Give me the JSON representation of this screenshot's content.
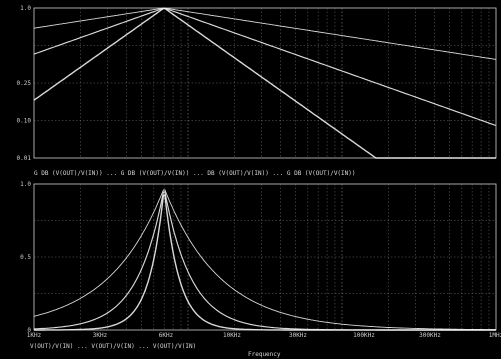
{
  "theme": {
    "background": "#000000",
    "grid": "#8a8a8a",
    "axis": "#e0e0e0",
    "trace": "#f0f0f0"
  },
  "top_panel": {
    "y_ticks": [
      "1.0",
      "",
      "0.25",
      "0.10",
      "0.01"
    ],
    "legend": "G DB (V(OUT)/V(IN)) ... G DB (V(OUT)/V(IN)) ... DB (V(OUT)/V(IN)) ... G DB (V(OUT)/V(IN))"
  },
  "bottom_panel": {
    "y_ticks": [
      "1.0",
      "0.5",
      "0"
    ],
    "x_ticks": [
      "1KHz",
      "3KHz",
      "6KHz",
      "10KHz",
      "30KHz",
      "100KHz",
      "300KHz",
      "1MHz"
    ],
    "legend": "V(OUT)/V(IN) ... V(OUT)/V(IN) ... V(OUT)/V(IN)",
    "x_title": "Frequency"
  },
  "chart_data": [
    {
      "type": "line",
      "title": "",
      "xlabel": "",
      "ylabel": "",
      "x_scale": "log",
      "grid": true,
      "peak_frequency": 7000,
      "series": [
        {
          "name": "",
          "rolloff_exponent": 0.35
        },
        {
          "name": "",
          "rolloff_exponent": 0.8
        },
        {
          "name": "",
          "rolloff_exponent": 1.6
        }
      ]
    },
    {
      "type": "line",
      "title": "",
      "xlabel": "Frequency",
      "ylabel": "",
      "x_scale": "log",
      "grid": true,
      "peak_frequency": 7000,
      "ylim": [
        0,
        1
      ],
      "series": [
        {
          "name": "",
          "rolloff_exponent": 1.2
        },
        {
          "name": "",
          "rolloff_exponent": 2.5
        },
        {
          "name": "",
          "rolloff_exponent": 4.5
        }
      ]
    }
  ]
}
